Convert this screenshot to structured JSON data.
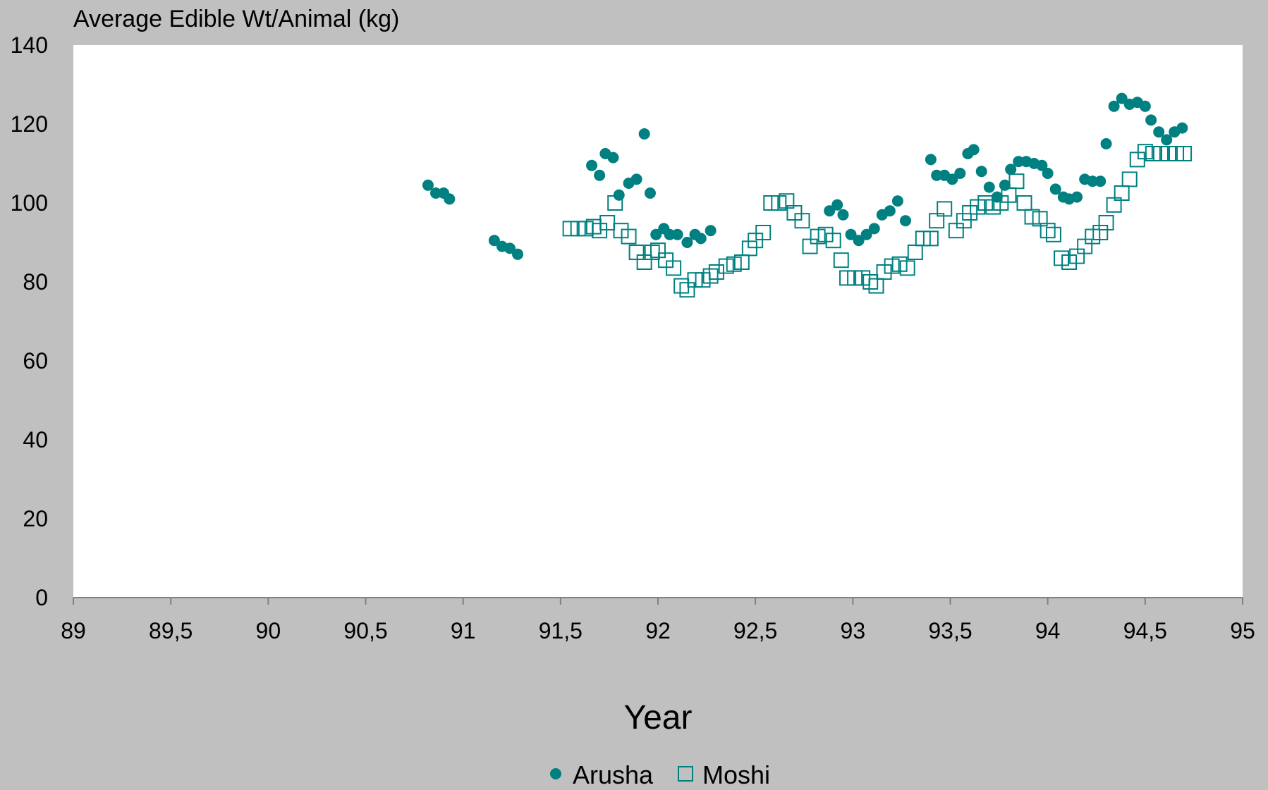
{
  "colors": {
    "background": "#c0c0c0",
    "plot_area": "#ffffff",
    "series": "#008080",
    "axis": "#808080"
  },
  "chart_data": {
    "type": "scatter",
    "title": "",
    "ylabel": "Average Edible Wt/Animal (kg)",
    "xlabel": "Year",
    "xlim": [
      89,
      95
    ],
    "ylim": [
      0,
      140
    ],
    "x_ticks": [
      89,
      89.5,
      90,
      90.5,
      91,
      91.5,
      92,
      92.5,
      93,
      93.5,
      94,
      94.5,
      95
    ],
    "x_tick_labels": [
      "89",
      "89,5",
      "90",
      "90,5",
      "91",
      "91,5",
      "92",
      "92,5",
      "93",
      "93,5",
      "94",
      "94,5",
      "95"
    ],
    "y_ticks": [
      0,
      20,
      40,
      60,
      80,
      100,
      120,
      140
    ],
    "y_tick_labels": [
      "0",
      "20",
      "40",
      "60",
      "80",
      "100",
      "120",
      "140"
    ],
    "grid": false,
    "legend_position": "bottom-center",
    "series": [
      {
        "name": "Arusha",
        "marker": "filled-circle",
        "points": [
          [
            90.82,
            104.5
          ],
          [
            90.86,
            102.5
          ],
          [
            90.9,
            102.5
          ],
          [
            90.93,
            101
          ],
          [
            91.16,
            90.5
          ],
          [
            91.2,
            89
          ],
          [
            91.24,
            88.5
          ],
          [
            91.28,
            87
          ],
          [
            91.66,
            109.5
          ],
          [
            91.7,
            107
          ],
          [
            91.73,
            112.5
          ],
          [
            91.77,
            111.5
          ],
          [
            91.8,
            102
          ],
          [
            91.85,
            105
          ],
          [
            91.89,
            106
          ],
          [
            91.93,
            117.5
          ],
          [
            91.96,
            102.5
          ],
          [
            91.99,
            92
          ],
          [
            92.03,
            93.5
          ],
          [
            92.06,
            92
          ],
          [
            92.1,
            92
          ],
          [
            92.15,
            90
          ],
          [
            92.19,
            92
          ],
          [
            92.22,
            91
          ],
          [
            92.27,
            93
          ],
          [
            92.88,
            98
          ],
          [
            92.92,
            99.5
          ],
          [
            92.95,
            97
          ],
          [
            92.99,
            92
          ],
          [
            93.03,
            90.5
          ],
          [
            93.07,
            92
          ],
          [
            93.11,
            93.5
          ],
          [
            93.15,
            97
          ],
          [
            93.19,
            98
          ],
          [
            93.23,
            100.5
          ],
          [
            93.27,
            95.5
          ],
          [
            93.4,
            111
          ],
          [
            93.43,
            107
          ],
          [
            93.47,
            107
          ],
          [
            93.51,
            106
          ],
          [
            93.55,
            107.5
          ],
          [
            93.59,
            112.5
          ],
          [
            93.62,
            113.5
          ],
          [
            93.66,
            108
          ],
          [
            93.7,
            104
          ],
          [
            93.74,
            101.5
          ],
          [
            93.78,
            104.5
          ],
          [
            93.81,
            108.5
          ],
          [
            93.85,
            110.5
          ],
          [
            93.89,
            110.5
          ],
          [
            93.93,
            110
          ],
          [
            93.97,
            109.5
          ],
          [
            94.0,
            107.5
          ],
          [
            94.04,
            103.5
          ],
          [
            94.08,
            101.5
          ],
          [
            94.11,
            101
          ],
          [
            94.15,
            101.5
          ],
          [
            94.19,
            106
          ],
          [
            94.23,
            105.5
          ],
          [
            94.27,
            105.5
          ],
          [
            94.3,
            115
          ],
          [
            94.34,
            124.5
          ],
          [
            94.38,
            126.5
          ],
          [
            94.42,
            125
          ],
          [
            94.46,
            125.5
          ],
          [
            94.5,
            124.5
          ],
          [
            94.53,
            121
          ],
          [
            94.57,
            118
          ],
          [
            94.61,
            116
          ],
          [
            94.65,
            118
          ],
          [
            94.69,
            119
          ]
        ]
      },
      {
        "name": "Moshi",
        "marker": "hollow-square",
        "points": [
          [
            91.55,
            93.5
          ],
          [
            91.59,
            93.5
          ],
          [
            91.63,
            93.5
          ],
          [
            91.67,
            94
          ],
          [
            91.7,
            93
          ],
          [
            91.74,
            95
          ],
          [
            91.78,
            100
          ],
          [
            91.81,
            93
          ],
          [
            91.85,
            91.5
          ],
          [
            91.89,
            87.5
          ],
          [
            91.93,
            85
          ],
          [
            91.97,
            87.5
          ],
          [
            92.0,
            88
          ],
          [
            92.04,
            85.5
          ],
          [
            92.08,
            83.5
          ],
          [
            92.12,
            79
          ],
          [
            92.15,
            78
          ],
          [
            92.19,
            80.5
          ],
          [
            92.23,
            80.5
          ],
          [
            92.27,
            81.5
          ],
          [
            92.3,
            82.5
          ],
          [
            92.35,
            84
          ],
          [
            92.39,
            84.5
          ],
          [
            92.43,
            85
          ],
          [
            92.47,
            88.5
          ],
          [
            92.5,
            90.5
          ],
          [
            92.54,
            92.5
          ],
          [
            92.58,
            100
          ],
          [
            92.62,
            100
          ],
          [
            92.66,
            100.5
          ],
          [
            92.7,
            97.5
          ],
          [
            92.74,
            95.5
          ],
          [
            92.78,
            89
          ],
          [
            92.82,
            91.5
          ],
          [
            92.86,
            92
          ],
          [
            92.9,
            90.5
          ],
          [
            92.94,
            85.5
          ],
          [
            92.97,
            81
          ],
          [
            93.01,
            81
          ],
          [
            93.05,
            81
          ],
          [
            93.09,
            80
          ],
          [
            93.12,
            79
          ],
          [
            93.16,
            82.5
          ],
          [
            93.2,
            84
          ],
          [
            93.24,
            84.5
          ],
          [
            93.28,
            83.5
          ],
          [
            93.32,
            87.5
          ],
          [
            93.36,
            91
          ],
          [
            93.4,
            91
          ],
          [
            93.43,
            95.5
          ],
          [
            93.47,
            98.5
          ],
          [
            93.53,
            93
          ],
          [
            93.57,
            95.5
          ],
          [
            93.6,
            97.5
          ],
          [
            93.64,
            99
          ],
          [
            93.68,
            100
          ],
          [
            93.72,
            99
          ],
          [
            93.76,
            100
          ],
          [
            93.8,
            102
          ],
          [
            93.84,
            105.5
          ],
          [
            93.88,
            100
          ],
          [
            93.92,
            96.5
          ],
          [
            93.96,
            96
          ],
          [
            94.0,
            93
          ],
          [
            94.03,
            92
          ],
          [
            94.07,
            86
          ],
          [
            94.11,
            85
          ],
          [
            94.15,
            86.5
          ],
          [
            94.19,
            89
          ],
          [
            94.23,
            91.5
          ],
          [
            94.27,
            92.5
          ],
          [
            94.3,
            95
          ],
          [
            94.34,
            99.5
          ],
          [
            94.38,
            102.5
          ],
          [
            94.42,
            106
          ],
          [
            94.46,
            111
          ],
          [
            94.5,
            113
          ],
          [
            94.54,
            112.5
          ],
          [
            94.58,
            112.5
          ],
          [
            94.62,
            112.5
          ],
          [
            94.66,
            112.5
          ],
          [
            94.7,
            112.5
          ]
        ]
      }
    ]
  }
}
